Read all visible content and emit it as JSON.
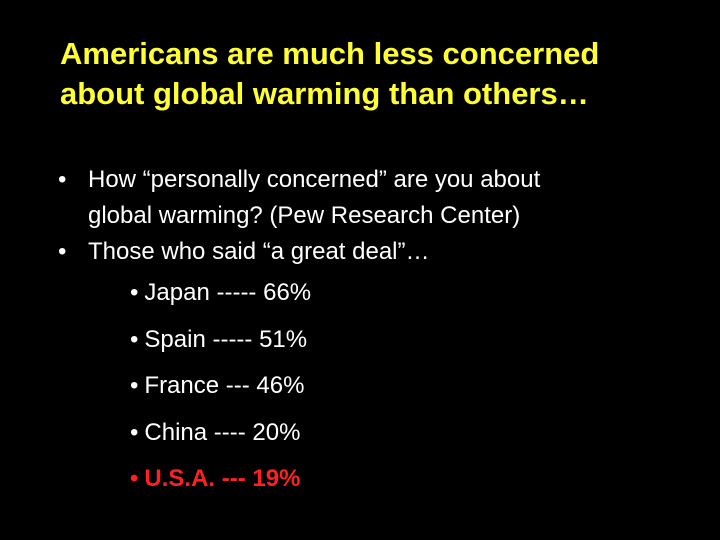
{
  "slide": {
    "title_line1": "Americans are much less concerned",
    "title_line2": "about global warming than others…",
    "bullets": [
      {
        "marker": "•",
        "line1": "How “personally concerned” are you about",
        "line2": "global warming? (Pew Research Center)"
      },
      {
        "marker": "•",
        "line1": "Those who said “a great deal”…"
      }
    ],
    "countries": [
      {
        "marker": "•",
        "text": "Japan ----- 66%"
      },
      {
        "marker": "•",
        "text": "Spain ----- 51%"
      },
      {
        "marker": "•",
        "text": "France --- 46%"
      },
      {
        "marker": "•",
        "text": "China ---- 20%"
      },
      {
        "marker": "•",
        "text": "U.S.A. --- 19%"
      }
    ]
  },
  "colors": {
    "background": "#000000",
    "title": "#ffff33",
    "text": "#ffffff",
    "highlight": "#ff2020"
  }
}
